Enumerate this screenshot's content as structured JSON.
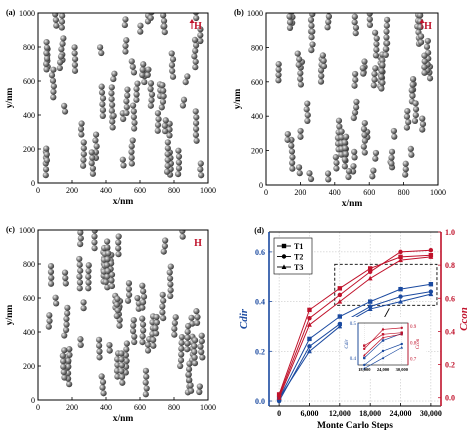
{
  "panels": [
    {
      "label": "(a)",
      "field": "H",
      "arrow": true,
      "xlabel": "x/nm",
      "ylabel": "y/nm",
      "ticks": [
        0,
        200,
        400,
        600,
        800,
        1000
      ]
    },
    {
      "label": "(b)",
      "field": "H",
      "arrow": true,
      "xlabel": "x/nm",
      "ylabel": "y/nm",
      "ticks": [
        0,
        200,
        400,
        600,
        800,
        1000
      ]
    },
    {
      "label": "(c)",
      "field": "H",
      "arrow": false,
      "xlabel": "x/nm",
      "ylabel": "y/nm",
      "ticks": [
        0,
        200,
        400,
        600,
        800,
        1000
      ]
    }
  ],
  "colors": {
    "blue": "#1b4aa0",
    "red": "#c0122b",
    "sphere": "#555555"
  },
  "chart_data": {
    "type": "line",
    "panel_label": "(d)",
    "x": [
      0,
      6000,
      12000,
      18000,
      24000,
      30000
    ],
    "x_tick_labels": [
      "0",
      "6,000",
      "12,000",
      "18,000",
      "24,000",
      "30,000"
    ],
    "xlabel": "Monte Carlo Steps",
    "ylabel_left": "Cdir",
    "ylabel_right": "Ccon",
    "ylim_left": [
      -0.02,
      0.68
    ],
    "ylim_right": [
      -0.05,
      1.0
    ],
    "left_ticks": [
      "0.0",
      "0.2",
      "0.4",
      "0.6"
    ],
    "right_ticks": [
      "0.0",
      "0.2",
      "0.4",
      "0.6",
      "0.8",
      "1.0"
    ],
    "legend": {
      "position": "upper-left",
      "entries": [
        "T1",
        "T2",
        "T3"
      ]
    },
    "series": [
      {
        "name": "T1",
        "axis": "left",
        "color": "#1b4aa0",
        "marker": "square",
        "values": [
          0.01,
          0.25,
          0.34,
          0.4,
          0.45,
          0.47
        ]
      },
      {
        "name": "T2",
        "axis": "left",
        "color": "#1b4aa0",
        "marker": "circle",
        "values": [
          0.0,
          0.22,
          0.31,
          0.38,
          0.42,
          0.44
        ]
      },
      {
        "name": "T3",
        "axis": "left",
        "color": "#1b4aa0",
        "marker": "triangle",
        "values": [
          0.01,
          0.2,
          0.3,
          0.37,
          0.4,
          0.43
        ]
      },
      {
        "name": "T1",
        "axis": "right",
        "color": "#c0122b",
        "marker": "square",
        "values": [
          0.02,
          0.53,
          0.66,
          0.78,
          0.85,
          0.86
        ]
      },
      {
        "name": "T2",
        "axis": "right",
        "color": "#c0122b",
        "marker": "circle",
        "values": [
          0.01,
          0.48,
          0.62,
          0.76,
          0.88,
          0.89
        ]
      },
      {
        "name": "T3",
        "axis": "right",
        "color": "#c0122b",
        "marker": "triangle",
        "values": [
          0.0,
          0.44,
          0.58,
          0.72,
          0.83,
          0.85
        ]
      }
    ],
    "inset": {
      "x_tick_labels": [
        "18,000",
        "24,000",
        "30,000"
      ],
      "left_ticks": [
        "0.4",
        "0.5"
      ],
      "right_ticks": [
        "0.7",
        "0.8",
        "0.9"
      ],
      "ylabel_left": "Cdir",
      "ylabel_right": "Ccon"
    }
  }
}
